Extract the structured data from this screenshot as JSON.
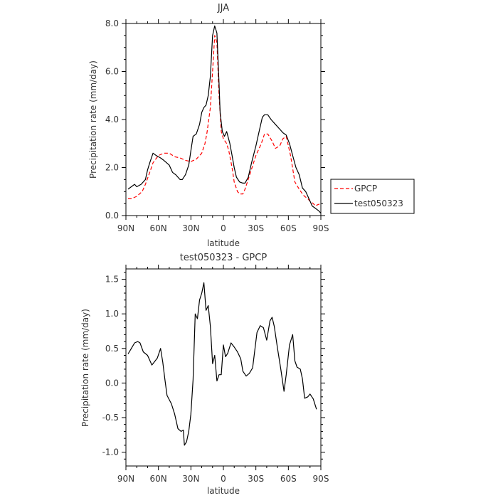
{
  "chart_data": [
    {
      "type": "line",
      "title": "JJA",
      "xlabel": "latitude",
      "ylabel": "Precipitation rate (mm/day)",
      "x_tick_labels": [
        "90N",
        "60N",
        "30N",
        "0",
        "30S",
        "60S",
        "90S"
      ],
      "x_tick_values": [
        90,
        60,
        30,
        0,
        -30,
        -60,
        -90
      ],
      "y_tick_labels": [
        "0.0",
        "2.0",
        "4.0",
        "6.0",
        "8.0"
      ],
      "y_tick_values": [
        0,
        2,
        4,
        6,
        8
      ],
      "xlim": [
        90,
        -90
      ],
      "ylim": [
        0,
        8
      ],
      "legend_position": "right",
      "series": [
        {
          "name": "GPCP",
          "color": "#ff0000",
          "dash": "dashed",
          "points": [
            [
              88,
              0.7
            ],
            [
              85,
              0.7
            ],
            [
              80,
              0.8
            ],
            [
              75,
              1.0
            ],
            [
              72,
              1.3
            ],
            [
              68,
              1.8
            ],
            [
              65,
              2.2
            ],
            [
              60,
              2.5
            ],
            [
              55,
              2.6
            ],
            [
              50,
              2.6
            ],
            [
              45,
              2.45
            ],
            [
              40,
              2.4
            ],
            [
              35,
              2.3
            ],
            [
              30,
              2.25
            ],
            [
              25,
              2.35
            ],
            [
              20,
              2.6
            ],
            [
              17,
              3.0
            ],
            [
              15,
              3.5
            ],
            [
              12,
              4.5
            ],
            [
              10,
              6.0
            ],
            [
              8,
              7.5
            ],
            [
              6,
              7.2
            ],
            [
              4,
              5.0
            ],
            [
              2,
              3.5
            ],
            [
              0,
              3.2
            ],
            [
              -3,
              3.0
            ],
            [
              -5,
              2.7
            ],
            [
              -8,
              2.0
            ],
            [
              -10,
              1.4
            ],
            [
              -13,
              1.0
            ],
            [
              -15,
              0.9
            ],
            [
              -18,
              0.9
            ],
            [
              -20,
              1.1
            ],
            [
              -25,
              1.8
            ],
            [
              -30,
              2.5
            ],
            [
              -35,
              3.0
            ],
            [
              -38,
              3.4
            ],
            [
              -41,
              3.4
            ],
            [
              -45,
              3.1
            ],
            [
              -48,
              2.8
            ],
            [
              -52,
              2.9
            ],
            [
              -55,
              3.2
            ],
            [
              -58,
              3.3
            ],
            [
              -62,
              2.5
            ],
            [
              -66,
              1.4
            ],
            [
              -70,
              1.1
            ],
            [
              -73,
              0.9
            ],
            [
              -75,
              0.8
            ],
            [
              -78,
              0.7
            ],
            [
              -80,
              0.6
            ],
            [
              -83,
              0.5
            ],
            [
              -85,
              0.4
            ],
            [
              -87,
              0.45
            ],
            [
              -90,
              0.5
            ]
          ]
        },
        {
          "name": "test050323",
          "color": "#000000",
          "dash": "solid",
          "points": [
            [
              88,
              1.1
            ],
            [
              85,
              1.2
            ],
            [
              82,
              1.3
            ],
            [
              80,
              1.2
            ],
            [
              76,
              1.3
            ],
            [
              72,
              1.5
            ],
            [
              70,
              1.9
            ],
            [
              68,
              2.2
            ],
            [
              65,
              2.6
            ],
            [
              62,
              2.5
            ],
            [
              58,
              2.4
            ],
            [
              55,
              2.3
            ],
            [
              50,
              2.1
            ],
            [
              47,
              1.8
            ],
            [
              44,
              1.7
            ],
            [
              40,
              1.5
            ],
            [
              38,
              1.5
            ],
            [
              35,
              1.7
            ],
            [
              32,
              2.1
            ],
            [
              30,
              2.7
            ],
            [
              28,
              3.3
            ],
            [
              25,
              3.4
            ],
            [
              22,
              3.8
            ],
            [
              20,
              4.3
            ],
            [
              18,
              4.5
            ],
            [
              16,
              4.6
            ],
            [
              14,
              5.0
            ],
            [
              12,
              5.8
            ],
            [
              10,
              7.5
            ],
            [
              8,
              7.9
            ],
            [
              6,
              7.6
            ],
            [
              4,
              5.5
            ],
            [
              3,
              4.3
            ],
            [
              1,
              3.5
            ],
            [
              -1,
              3.3
            ],
            [
              -3,
              3.5
            ],
            [
              -6,
              3.0
            ],
            [
              -8,
              2.5
            ],
            [
              -10,
              2.0
            ],
            [
              -12,
              1.6
            ],
            [
              -15,
              1.4
            ],
            [
              -18,
              1.35
            ],
            [
              -20,
              1.35
            ],
            [
              -23,
              1.6
            ],
            [
              -26,
              2.2
            ],
            [
              -30,
              2.9
            ],
            [
              -33,
              3.5
            ],
            [
              -36,
              4.1
            ],
            [
              -38,
              4.2
            ],
            [
              -41,
              4.2
            ],
            [
              -44,
              4.0
            ],
            [
              -48,
              3.8
            ],
            [
              -52,
              3.6
            ],
            [
              -55,
              3.45
            ],
            [
              -58,
              3.35
            ],
            [
              -61,
              3.0
            ],
            [
              -64,
              2.5
            ],
            [
              -67,
              2.0
            ],
            [
              -70,
              1.7
            ],
            [
              -73,
              1.15
            ],
            [
              -76,
              1.0
            ],
            [
              -79,
              0.7
            ],
            [
              -82,
              0.4
            ],
            [
              -85,
              0.3
            ],
            [
              -88,
              0.2
            ],
            [
              -90,
              0.1
            ]
          ]
        }
      ]
    },
    {
      "type": "line",
      "title": "test050323 - GPCP",
      "xlabel": "latitude",
      "ylabel": "Precipitation rate (mm/day)",
      "x_tick_labels": [
        "90N",
        "60N",
        "30N",
        "0",
        "30S",
        "60S",
        "90S"
      ],
      "x_tick_values": [
        90,
        60,
        30,
        0,
        -30,
        -60,
        -90
      ],
      "y_tick_labels": [
        "-1.0",
        "-0.5",
        "0.0",
        "0.5",
        "1.0",
        "1.5"
      ],
      "y_tick_values": [
        -1.0,
        -0.5,
        0.0,
        0.5,
        1.0,
        1.5
      ],
      "xlim": [
        90,
        -90
      ],
      "ylim": [
        -1.2,
        1.65
      ],
      "series": [
        {
          "color": "#000000",
          "dash": "solid",
          "points": [
            [
              88,
              0.42
            ],
            [
              85,
              0.5
            ],
            [
              82,
              0.58
            ],
            [
              79,
              0.6
            ],
            [
              77,
              0.58
            ],
            [
              74,
              0.45
            ],
            [
              70,
              0.4
            ],
            [
              66,
              0.26
            ],
            [
              63,
              0.32
            ],
            [
              61,
              0.36
            ],
            [
              58,
              0.5
            ],
            [
              56,
              0.3
            ],
            [
              54,
              0.05
            ],
            [
              52,
              -0.18
            ],
            [
              48,
              -0.3
            ],
            [
              45,
              -0.45
            ],
            [
              42,
              -0.66
            ],
            [
              39,
              -0.7
            ],
            [
              37,
              -0.68
            ],
            [
              36,
              -0.9
            ],
            [
              34,
              -0.85
            ],
            [
              32,
              -0.7
            ],
            [
              30,
              -0.45
            ],
            [
              28,
              0.05
            ],
            [
              26,
              1.0
            ],
            [
              24,
              0.93
            ],
            [
              22,
              1.2
            ],
            [
              20,
              1.3
            ],
            [
              18,
              1.45
            ],
            [
              16,
              1.05
            ],
            [
              14,
              1.12
            ],
            [
              12,
              0.82
            ],
            [
              10,
              0.28
            ],
            [
              8,
              0.4
            ],
            [
              6,
              0.03
            ],
            [
              4,
              0.12
            ],
            [
              2,
              0.12
            ],
            [
              0,
              0.55
            ],
            [
              -2,
              0.38
            ],
            [
              -4,
              0.43
            ],
            [
              -7,
              0.58
            ],
            [
              -10,
              0.52
            ],
            [
              -13,
              0.45
            ],
            [
              -16,
              0.35
            ],
            [
              -18,
              0.17
            ],
            [
              -21,
              0.1
            ],
            [
              -24,
              0.14
            ],
            [
              -27,
              0.22
            ],
            [
              -31,
              0.73
            ],
            [
              -34,
              0.83
            ],
            [
              -37,
              0.8
            ],
            [
              -40,
              0.62
            ],
            [
              -43,
              0.9
            ],
            [
              -45,
              0.95
            ],
            [
              -47,
              0.82
            ],
            [
              -50,
              0.5
            ],
            [
              -53,
              0.2
            ],
            [
              -56,
              -0.12
            ],
            [
              -58,
              0.12
            ],
            [
              -61,
              0.55
            ],
            [
              -64,
              0.7
            ],
            [
              -66,
              0.32
            ],
            [
              -68,
              0.23
            ],
            [
              -71,
              0.2
            ],
            [
              -73,
              0.06
            ],
            [
              -75,
              -0.22
            ],
            [
              -78,
              -0.2
            ],
            [
              -80,
              -0.16
            ],
            [
              -83,
              -0.23
            ],
            [
              -86,
              -0.38
            ]
          ]
        }
      ]
    }
  ]
}
